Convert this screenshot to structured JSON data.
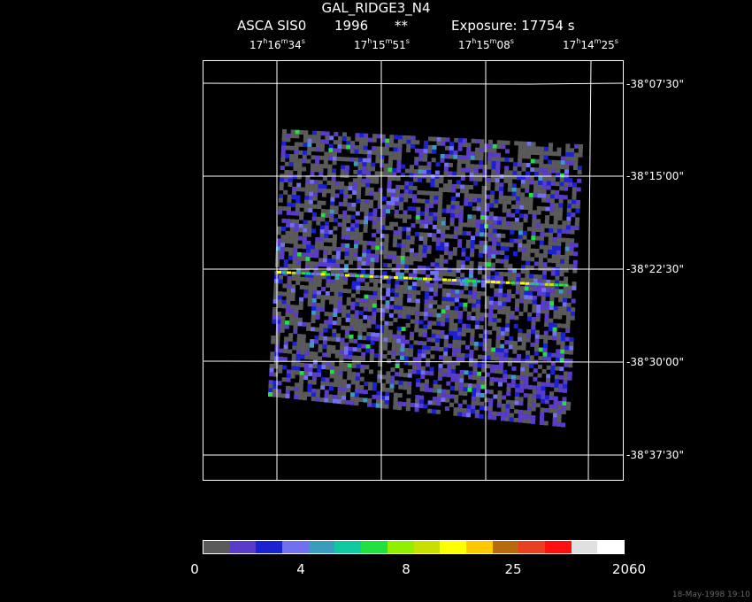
{
  "header": {
    "title": "GAL_RIDGE3_N4",
    "instrument": "ASCA SIS0",
    "year": "1996",
    "stars": "**",
    "exposure": "Exposure: 17754  s"
  },
  "ra_labels": [
    {
      "h": "17",
      "hs": "h",
      "m": "16",
      "ms": "m",
      "s": "34",
      "ss": "s"
    },
    {
      "h": "17",
      "hs": "h",
      "m": "15",
      "ms": "m",
      "s": "51",
      "ss": "s"
    },
    {
      "h": "17",
      "hs": "h",
      "m": "15",
      "ms": "m",
      "s": "08",
      "ss": "s"
    },
    {
      "h": "17",
      "hs": "h",
      "m": "14",
      "ms": "m",
      "s": "25",
      "ss": "s"
    }
  ],
  "dec_labels": [
    "-38°07'30\"",
    "-38°15'00\"",
    "-38°22'30\"",
    "-38°30'00\"",
    "-38°37'30\""
  ],
  "colorbar": {
    "colors": [
      "#5a5a5a",
      "#5a3cc8",
      "#1a22d2",
      "#7070f0",
      "#3c9cc0",
      "#12c8a0",
      "#22e040",
      "#90f000",
      "#c8e000",
      "#ffff00",
      "#ffc800",
      "#b86a10",
      "#e84020",
      "#ff1010",
      "#e0e0e0",
      "#ffffff"
    ],
    "labels": [
      "0",
      "4",
      "8",
      "25",
      "2060"
    ]
  },
  "timestamp": "18-May-1998 19:10"
}
